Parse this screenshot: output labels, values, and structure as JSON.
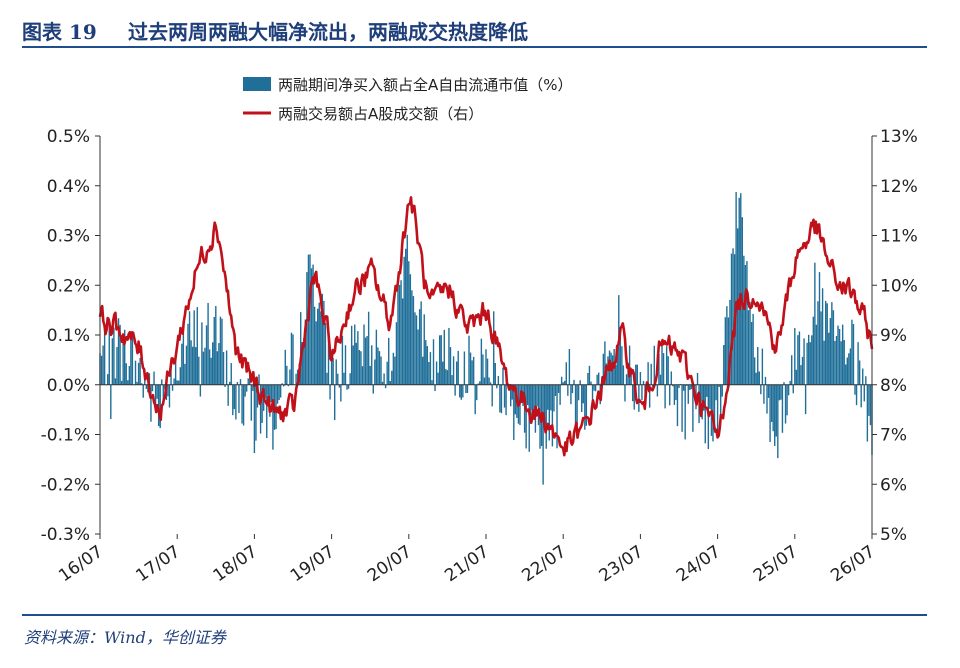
{
  "figure": {
    "number": "图表 19",
    "title": "过去两周两融大幅净流出，两融成交热度降低",
    "source": "资料来源：Wind，华创证券"
  },
  "colors": {
    "bar": "#1f6f99",
    "line": "#c0101a",
    "axis": "#333333",
    "brand": "#1f3f7a"
  },
  "chart_data": {
    "type": "bar+line",
    "legend": [
      "两融期间净买入额占全A自由流通市值（%）",
      "两融交易额占A股成交额（右）"
    ],
    "legend_position": "top-center",
    "x_ticks": [
      "16/07",
      "17/07",
      "18/07",
      "19/07",
      "20/07",
      "21/07",
      "22/07",
      "23/07",
      "24/07",
      "25/07",
      "26/07"
    ],
    "left_axis": {
      "ticks": [
        "0.5%",
        "0.4%",
        "0.3%",
        "0.2%",
        "0.1%",
        "0.0%",
        "-0.1%",
        "-0.2%",
        "-0.3%"
      ],
      "ylim": [
        -0.3,
        0.5
      ]
    },
    "right_axis": {
      "ticks": [
        "13%",
        "12%",
        "11%",
        "10%",
        "9%",
        "8%",
        "7%",
        "6%",
        "5%"
      ],
      "ylim": [
        5,
        13
      ]
    },
    "grid": false,
    "series_line_anchors": [
      [
        "16/07",
        9.3
      ],
      [
        "16/10",
        9.1
      ],
      [
        "17/01",
        8.7
      ],
      [
        "17/04",
        7.4
      ],
      [
        "17/07",
        8.9
      ],
      [
        "17/10",
        10.4
      ],
      [
        "18/01",
        11.3
      ],
      [
        "18/04",
        8.6
      ],
      [
        "18/07",
        8.0
      ],
      [
        "18/10",
        7.4
      ],
      [
        "19/01",
        7.5
      ],
      [
        "19/04",
        10.3
      ],
      [
        "19/07",
        8.5
      ],
      [
        "19/10",
        9.8
      ],
      [
        "20/01",
        10.3
      ],
      [
        "20/04",
        9.2
      ],
      [
        "20/07",
        11.9
      ],
      [
        "20/10",
        9.5
      ],
      [
        "21/01",
        10.0
      ],
      [
        "21/04",
        9.1
      ],
      [
        "21/07",
        9.5
      ],
      [
        "21/10",
        8.1
      ],
      [
        "22/01",
        7.6
      ],
      [
        "22/04",
        7.3
      ],
      [
        "22/07",
        6.7
      ],
      [
        "22/10",
        7.1
      ],
      [
        "23/01",
        8.0
      ],
      [
        "23/04",
        9.0
      ],
      [
        "23/07",
        7.4
      ],
      [
        "23/10",
        8.8
      ],
      [
        "24/01",
        8.6
      ],
      [
        "24/04",
        7.7
      ],
      [
        "24/07",
        6.9
      ],
      [
        "24/10",
        9.7
      ],
      [
        "25/01",
        9.9
      ],
      [
        "25/04",
        8.7
      ],
      [
        "25/07",
        10.6
      ],
      [
        "25/10",
        11.2
      ],
      [
        "26/01",
        10.1
      ],
      [
        "26/04",
        9.8
      ],
      [
        "26/07",
        8.8
      ]
    ],
    "series_bar_anchors": [
      [
        "16/07",
        0.05
      ],
      [
        "16/10",
        0.08
      ],
      [
        "17/01",
        0.03
      ],
      [
        "17/04",
        -0.05
      ],
      [
        "17/07",
        0.06
      ],
      [
        "17/10",
        0.1
      ],
      [
        "18/01",
        0.11
      ],
      [
        "18/04",
        -0.03
      ],
      [
        "18/07",
        -0.04
      ],
      [
        "18/10",
        -0.07
      ],
      [
        "19/01",
        0.05
      ],
      [
        "19/04",
        0.24
      ],
      [
        "19/07",
        0.02
      ],
      [
        "19/10",
        0.05
      ],
      [
        "20/01",
        0.08
      ],
      [
        "20/04",
        0.04
      ],
      [
        "20/07",
        0.3
      ],
      [
        "20/10",
        0.02
      ],
      [
        "21/01",
        0.06
      ],
      [
        "21/04",
        0.03
      ],
      [
        "21/07",
        0.04
      ],
      [
        "21/10",
        -0.02
      ],
      [
        "22/01",
        -0.07
      ],
      [
        "22/04",
        -0.12
      ],
      [
        "22/07",
        0.03
      ],
      [
        "22/10",
        -0.04
      ],
      [
        "23/01",
        0.06
      ],
      [
        "23/04",
        0.05
      ],
      [
        "23/07",
        -0.02
      ],
      [
        "23/10",
        0.04
      ],
      [
        "24/01",
        -0.05
      ],
      [
        "24/04",
        -0.03
      ],
      [
        "24/07",
        -0.08
      ],
      [
        "24/10",
        0.38
      ],
      [
        "25/01",
        0.06
      ],
      [
        "25/04",
        -0.1
      ],
      [
        "25/07",
        0.05
      ],
      [
        "25/10",
        0.18
      ],
      [
        "26/01",
        0.1
      ],
      [
        "26/04",
        0.06
      ],
      [
        "26/07",
        -0.09
      ]
    ]
  }
}
